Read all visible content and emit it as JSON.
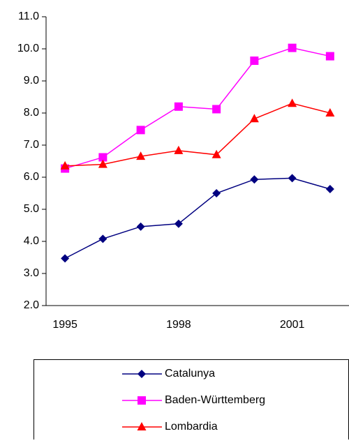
{
  "chart_data": {
    "type": "line",
    "x": [
      1995,
      1996,
      1997,
      1998,
      1999,
      2000,
      2001,
      2002
    ],
    "xlim": [
      1994.5,
      2002.5
    ],
    "xticks": [
      1995,
      1998,
      2001
    ],
    "ylim": [
      2,
      11
    ],
    "yticks": [
      {
        "value": 2,
        "label": "2.0"
      },
      {
        "value": 3,
        "label": "3.0"
      },
      {
        "value": 4,
        "label": "4.0"
      },
      {
        "value": 5,
        "label": "5.0"
      },
      {
        "value": 6,
        "label": "6.0"
      },
      {
        "value": 7,
        "label": "7.0"
      },
      {
        "value": 8,
        "label": "8.0"
      },
      {
        "value": 9,
        "label": "9.0"
      },
      {
        "value": 10,
        "label": "10.0"
      },
      {
        "value": 11,
        "label": "11.0"
      }
    ],
    "legend": "bottom",
    "series": [
      {
        "name": "Catalunya",
        "color": "#000080",
        "marker": "diamond",
        "values": [
          3.47,
          4.08,
          4.46,
          4.55,
          5.5,
          5.93,
          5.97,
          5.63
        ]
      },
      {
        "name": "Baden-Württemberg",
        "color": "#ff00ff",
        "marker": "square",
        "values": [
          6.27,
          6.62,
          7.47,
          8.2,
          8.12,
          9.63,
          10.03,
          9.77
        ]
      },
      {
        "name": "Lombardia",
        "color": "#ff0000",
        "marker": "triangle",
        "values": [
          6.35,
          6.4,
          6.65,
          6.83,
          6.7,
          7.82,
          8.3,
          8.0
        ]
      }
    ]
  }
}
